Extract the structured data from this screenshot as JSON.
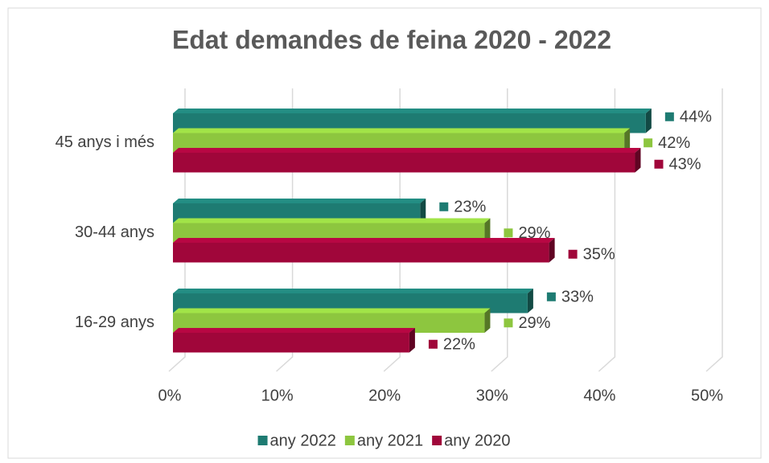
{
  "chart_data": {
    "type": "bar3d_horizontal",
    "title": "Edat demandes de feina 2020 - 2022",
    "categories": [
      "45 anys i més",
      "30-44 anys",
      "16-29 anys"
    ],
    "series": [
      {
        "name": "any 2022",
        "color": "#1e7b72",
        "values": [
          44,
          23,
          33
        ],
        "value_labels": [
          "44%",
          "23%",
          "33%"
        ]
      },
      {
        "name": "any 2021",
        "color": "#8dc63f",
        "values": [
          42,
          29,
          29
        ],
        "value_labels": [
          "42%",
          "29%",
          "29%"
        ]
      },
      {
        "name": "any 2020",
        "color": "#a0063a",
        "values": [
          43,
          35,
          22
        ],
        "value_labels": [
          "43%",
          "35%",
          "22%"
        ]
      }
    ],
    "xlim": [
      0,
      50
    ],
    "xticks": [
      {
        "value": 0,
        "label": "0%"
      },
      {
        "value": 10,
        "label": "10%"
      },
      {
        "value": 20,
        "label": "20%"
      },
      {
        "value": 30,
        "label": "30%"
      },
      {
        "value": 40,
        "label": "40%"
      },
      {
        "value": 50,
        "label": "50%"
      }
    ],
    "grid": true,
    "legend": "bottom"
  }
}
